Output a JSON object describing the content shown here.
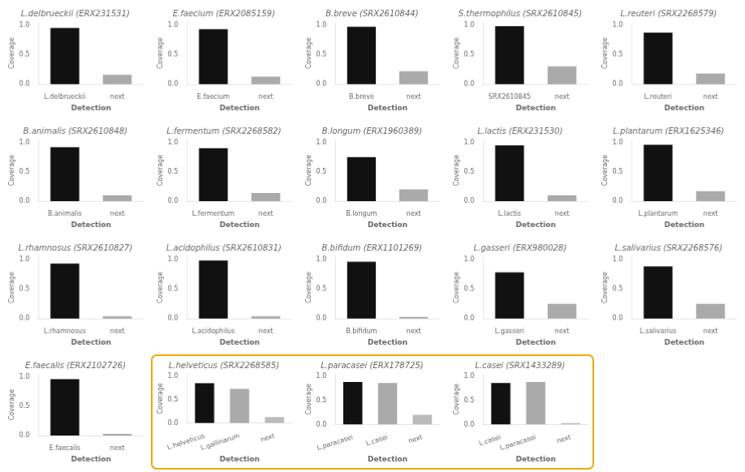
{
  "chart_data": [
    {
      "type": "bar",
      "title": "L.delbrueckii (ERX231531)",
      "categories": [
        "L.delbrueckii",
        "next"
      ],
      "values": [
        0.95,
        0.16
      ],
      "colors": [
        "#111111",
        "#aaaaaa"
      ],
      "xlabel": "Detection",
      "ylabel": "Coverage",
      "ylim": [
        0,
        1.05
      ],
      "yticks": [
        {
          "value": 0,
          "label": "0.0"
        },
        {
          "value": 0.5,
          "label": "0.5"
        },
        {
          "value": 1,
          "label": "1.0"
        }
      ],
      "grid": false
    },
    {
      "type": "bar",
      "title": "E.faecium (ERX2085159)",
      "categories": [
        "E.faecium",
        "next"
      ],
      "values": [
        0.93,
        0.13
      ],
      "colors": [
        "#111111",
        "#aaaaaa"
      ],
      "xlabel": "Detection",
      "ylabel": "Coverage",
      "ylim": [
        0,
        1.05
      ],
      "yticks": [
        {
          "value": 0,
          "label": "0.0"
        },
        {
          "value": 0.5,
          "label": "0.5"
        },
        {
          "value": 1,
          "label": "1.0"
        }
      ],
      "grid": false
    },
    {
      "type": "bar",
      "title": "B.breve (SRX2610844)",
      "categories": [
        "B.breve",
        "next"
      ],
      "values": [
        0.97,
        0.22
      ],
      "colors": [
        "#111111",
        "#aaaaaa"
      ],
      "xlabel": "Detection",
      "ylabel": "Coverage",
      "ylim": [
        0,
        1.05
      ],
      "yticks": [
        {
          "value": 0,
          "label": "0.0"
        },
        {
          "value": 0.5,
          "label": "0.5"
        },
        {
          "value": 1,
          "label": "1.0"
        }
      ],
      "grid": false
    },
    {
      "type": "bar",
      "title": "S.thermophilus (SRX2610845)",
      "categories": [
        "SRX2610845",
        "next"
      ],
      "values": [
        0.98,
        0.3
      ],
      "colors": [
        "#111111",
        "#aaaaaa"
      ],
      "xlabel": "Detection",
      "ylabel": "Coverage",
      "ylim": [
        0,
        1.05
      ],
      "yticks": [
        {
          "value": 0,
          "label": "0.0"
        },
        {
          "value": 0.5,
          "label": "0.5"
        },
        {
          "value": 1,
          "label": "1.0"
        }
      ],
      "grid": false
    },
    {
      "type": "bar",
      "title": "L.reuteri (SRX2268579)",
      "categories": [
        "L.reuteri",
        "next"
      ],
      "values": [
        0.87,
        0.18
      ],
      "colors": [
        "#111111",
        "#aaaaaa"
      ],
      "xlabel": "Detection",
      "ylabel": "Coverage",
      "ylim": [
        0,
        1.05
      ],
      "yticks": [
        {
          "value": 0,
          "label": "0.0"
        },
        {
          "value": 0.5,
          "label": "0.5"
        },
        {
          "value": 1,
          "label": "1.0"
        }
      ],
      "grid": false
    },
    {
      "type": "bar",
      "title": "B.animalis (SRX2610848)",
      "categories": [
        "B.animalis",
        "next"
      ],
      "values": [
        0.92,
        0.1
      ],
      "colors": [
        "#111111",
        "#aaaaaa"
      ],
      "xlabel": "Detection",
      "ylabel": "Coverage",
      "ylim": [
        0,
        1.05
      ],
      "yticks": [
        {
          "value": 0,
          "label": "0.0"
        },
        {
          "value": 0.5,
          "label": "0.5"
        },
        {
          "value": 1,
          "label": "1.0"
        }
      ],
      "grid": false
    },
    {
      "type": "bar",
      "title": "L.fermentum (SRX2268582)",
      "categories": [
        "L.fermentum",
        "next"
      ],
      "values": [
        0.9,
        0.14
      ],
      "colors": [
        "#111111",
        "#aaaaaa"
      ],
      "xlabel": "Detection",
      "ylabel": "Coverage",
      "ylim": [
        0,
        1.05
      ],
      "yticks": [
        {
          "value": 0,
          "label": "0.0"
        },
        {
          "value": 0.5,
          "label": "0.5"
        },
        {
          "value": 1,
          "label": "1.0"
        }
      ],
      "grid": false
    },
    {
      "type": "bar",
      "title": "B.longum (ERX1960389)",
      "categories": [
        "B.longum",
        "next"
      ],
      "values": [
        0.75,
        0.2
      ],
      "colors": [
        "#111111",
        "#aaaaaa"
      ],
      "xlabel": "Detection",
      "ylabel": "Coverage",
      "ylim": [
        0,
        1.05
      ],
      "yticks": [
        {
          "value": 0,
          "label": "0.0"
        },
        {
          "value": 0.5,
          "label": "0.5"
        },
        {
          "value": 1,
          "label": "1.0"
        }
      ],
      "grid": false
    },
    {
      "type": "bar",
      "title": "L.lactis (ERX231530)",
      "categories": [
        "L.lactis",
        "next"
      ],
      "values": [
        0.95,
        0.1
      ],
      "colors": [
        "#111111",
        "#aaaaaa"
      ],
      "xlabel": "Detection",
      "ylabel": "Coverage",
      "ylim": [
        0,
        1.05
      ],
      "yticks": [
        {
          "value": 0,
          "label": "0.0"
        },
        {
          "value": 0.5,
          "label": "0.5"
        },
        {
          "value": 1,
          "label": "1.0"
        }
      ],
      "grid": false
    },
    {
      "type": "bar",
      "title": "L.plantarum (ERX1625346)",
      "categories": [
        "L.plantarum",
        "next"
      ],
      "values": [
        0.96,
        0.17
      ],
      "colors": [
        "#111111",
        "#aaaaaa"
      ],
      "xlabel": "Detection",
      "ylabel": "Coverage",
      "ylim": [
        0,
        1.05
      ],
      "yticks": [
        {
          "value": 0,
          "label": "0.0"
        },
        {
          "value": 0.5,
          "label": "0.5"
        },
        {
          "value": 1,
          "label": "1.0"
        }
      ],
      "grid": false
    },
    {
      "type": "bar",
      "title": "L.rhamnosus (SRX2610827)",
      "categories": [
        "L.rhamnosus",
        "next"
      ],
      "values": [
        0.93,
        0.04
      ],
      "colors": [
        "#111111",
        "#aaaaaa"
      ],
      "xlabel": "Detection",
      "ylabel": "Coverage",
      "ylim": [
        0,
        1.05
      ],
      "yticks": [
        {
          "value": 0,
          "label": "0.0"
        },
        {
          "value": 0.5,
          "label": "0.5"
        },
        {
          "value": 1,
          "label": "1.0"
        }
      ],
      "grid": false
    },
    {
      "type": "bar",
      "title": "L.acidophilus (SRX2610831)",
      "categories": [
        "L.acidophilus",
        "next"
      ],
      "values": [
        0.98,
        0.04
      ],
      "colors": [
        "#111111",
        "#aaaaaa"
      ],
      "xlabel": "Detection",
      "ylabel": "Coverage",
      "ylim": [
        0,
        1.05
      ],
      "yticks": [
        {
          "value": 0,
          "label": "0.0"
        },
        {
          "value": 0.5,
          "label": "0.5"
        },
        {
          "value": 1,
          "label": "1.0"
        }
      ],
      "grid": false
    },
    {
      "type": "bar",
      "title": "B.bifidum (ERX1101269)",
      "categories": [
        "B.bifidum",
        "next"
      ],
      "values": [
        0.96,
        0.03
      ],
      "colors": [
        "#111111",
        "#aaaaaa"
      ],
      "xlabel": "Detection",
      "ylabel": "Coverage",
      "ylim": [
        0,
        1.05
      ],
      "yticks": [
        {
          "value": 0,
          "label": "0.0"
        },
        {
          "value": 0.5,
          "label": "0.5"
        },
        {
          "value": 1,
          "label": "1.0"
        }
      ],
      "grid": false
    },
    {
      "type": "bar",
      "title": "L.gasseri (ERX980028)",
      "categories": [
        "L.gasseri",
        "next"
      ],
      "values": [
        0.78,
        0.25
      ],
      "colors": [
        "#111111",
        "#aaaaaa"
      ],
      "xlabel": "Detection",
      "ylabel": "Coverage",
      "ylim": [
        0,
        1.05
      ],
      "yticks": [
        {
          "value": 0,
          "label": "0.0"
        },
        {
          "value": 0.5,
          "label": "0.5"
        },
        {
          "value": 1,
          "label": "1.0"
        }
      ],
      "grid": false
    },
    {
      "type": "bar",
      "title": "L.salivarius (SRX2268576)",
      "categories": [
        "L.salivarius",
        "next"
      ],
      "values": [
        0.88,
        0.25
      ],
      "colors": [
        "#111111",
        "#aaaaaa"
      ],
      "xlabel": "Detection",
      "ylabel": "Coverage",
      "ylim": [
        0,
        1.05
      ],
      "yticks": [
        {
          "value": 0,
          "label": "0.0"
        },
        {
          "value": 0.5,
          "label": "0.5"
        },
        {
          "value": 1,
          "label": "1.0"
        }
      ],
      "grid": false
    },
    {
      "type": "bar",
      "title": "E.faecalis (ERX2102726)",
      "categories": [
        "E.faecalis",
        "next"
      ],
      "values": [
        0.96,
        0.03
      ],
      "colors": [
        "#111111",
        "#aaaaaa"
      ],
      "xlabel": "Detection",
      "ylabel": "Coverage",
      "ylim": [
        0,
        1.05
      ],
      "yticks": [
        {
          "value": 0,
          "label": "0.0"
        },
        {
          "value": 0.5,
          "label": "0.5"
        },
        {
          "value": 1,
          "label": "1.0"
        }
      ],
      "grid": false
    },
    {
      "type": "bar",
      "title": "L.helveticus (SRX2268585)",
      "categories": [
        "L.helveticus",
        "L.gallinarum",
        "next"
      ],
      "values": [
        0.85,
        0.73,
        0.13
      ],
      "colors": [
        "#111111",
        "#aaaaaa",
        "#bbbbbb"
      ],
      "xlabel": "Detection",
      "ylabel": "Coverage",
      "ylim": [
        0,
        1.05
      ],
      "yticks": [
        {
          "value": 0,
          "label": "0.0"
        },
        {
          "value": 0.5,
          "label": "0.5"
        },
        {
          "value": 1,
          "label": "1.0"
        }
      ],
      "grid": false
    },
    {
      "type": "bar",
      "title": "L.paracasei (ERX178725)",
      "categories": [
        "L.paracasei",
        "L.casei",
        "next"
      ],
      "values": [
        0.88,
        0.86,
        0.2
      ],
      "colors": [
        "#111111",
        "#aaaaaa",
        "#bbbbbb"
      ],
      "xlabel": "Detection",
      "ylabel": "Coverage",
      "ylim": [
        0,
        1.05
      ],
      "yticks": [
        {
          "value": 0,
          "label": "0.0"
        },
        {
          "value": 0.5,
          "label": "0.5"
        },
        {
          "value": 1,
          "label": "1.0"
        }
      ],
      "grid": false
    },
    {
      "type": "bar",
      "title": "L.casei (SRX1433289)",
      "categories": [
        "L.casei",
        "L.paracasei",
        "next"
      ],
      "values": [
        0.86,
        0.88,
        0.03
      ],
      "colors": [
        "#111111",
        "#aaaaaa",
        "#bbbbbb"
      ],
      "xlabel": "Detection",
      "ylabel": "Coverage",
      "ylim": [
        0,
        1.05
      ],
      "yticks": [
        {
          "value": 0,
          "label": "0.0"
        },
        {
          "value": 0.5,
          "label": "0.5"
        },
        {
          "value": 1,
          "label": "1.0"
        }
      ],
      "grid": false
    }
  ]
}
